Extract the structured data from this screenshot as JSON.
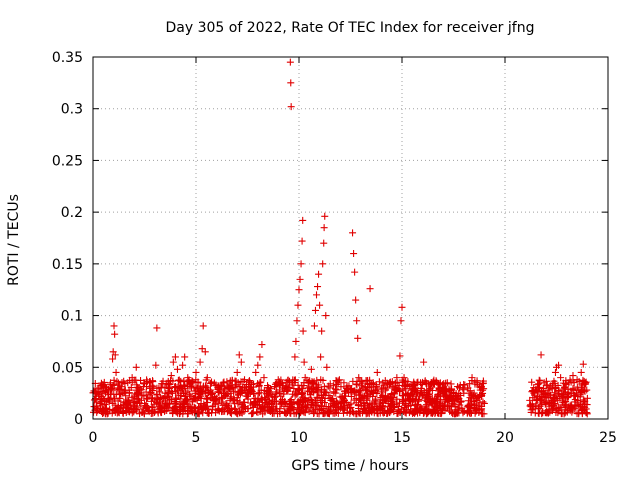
{
  "chart_data": {
    "type": "scatter",
    "title": "Day 305 of 2022, Rate Of TEC Index for receiver jfng",
    "xlabel": "GPS time / hours",
    "ylabel": "ROTI / TECUs",
    "xlim": [
      0,
      25
    ],
    "ylim": [
      0,
      0.35
    ],
    "xticks": [
      0,
      5,
      10,
      15,
      20,
      25
    ],
    "xtick_labels": [
      "0",
      "5",
      "10",
      "15",
      "20",
      "25"
    ],
    "yticks": [
      0,
      0.05,
      0.1,
      0.15,
      0.2,
      0.25,
      0.3,
      0.35
    ],
    "ytick_labels": [
      "0",
      "0.05",
      "0.1",
      "0.15",
      "0.2",
      "0.25",
      "0.3",
      "0.35"
    ],
    "grid": true,
    "marker": "+",
    "color": "#e00000",
    "series": [
      {
        "points": [
          [
            0.05,
            0.012
          ],
          [
            0.15,
            0.022
          ],
          [
            0.25,
            0.03
          ],
          [
            0.35,
            0.015
          ],
          [
            0.45,
            0.025
          ],
          [
            0.55,
            0.018
          ],
          [
            0.65,
            0.028
          ],
          [
            0.75,
            0.02
          ],
          [
            0.85,
            0.035
          ],
          [
            0.95,
            0.058
          ],
          [
            0.98,
            0.065
          ],
          [
            1.02,
            0.09
          ],
          [
            1.05,
            0.082
          ],
          [
            1.08,
            0.062
          ],
          [
            1.12,
            0.045
          ],
          [
            1.2,
            0.03
          ],
          [
            1.3,
            0.02
          ],
          [
            1.45,
            0.025
          ],
          [
            1.6,
            0.015
          ],
          [
            1.75,
            0.028
          ],
          [
            1.9,
            0.04
          ],
          [
            2.0,
            0.022
          ],
          [
            2.1,
            0.05
          ],
          [
            2.2,
            0.03
          ],
          [
            2.35,
            0.018
          ],
          [
            2.5,
            0.034
          ],
          [
            2.65,
            0.02
          ],
          [
            2.8,
            0.025
          ],
          [
            2.95,
            0.03
          ],
          [
            3.05,
            0.052
          ],
          [
            3.1,
            0.088
          ],
          [
            3.2,
            0.03
          ],
          [
            3.35,
            0.02
          ],
          [
            3.5,
            0.025
          ],
          [
            3.65,
            0.033
          ],
          [
            3.8,
            0.042
          ],
          [
            3.9,
            0.055
          ],
          [
            4.0,
            0.06
          ],
          [
            4.1,
            0.048
          ],
          [
            4.2,
            0.03
          ],
          [
            4.35,
            0.052
          ],
          [
            4.45,
            0.06
          ],
          [
            4.6,
            0.04
          ],
          [
            4.75,
            0.022
          ],
          [
            4.9,
            0.03
          ],
          [
            5.0,
            0.045
          ],
          [
            5.1,
            0.035
          ],
          [
            5.2,
            0.055
          ],
          [
            5.3,
            0.068
          ],
          [
            5.35,
            0.09
          ],
          [
            5.45,
            0.065
          ],
          [
            5.55,
            0.04
          ],
          [
            5.7,
            0.028
          ],
          [
            5.9,
            0.022
          ],
          [
            6.1,
            0.032
          ],
          [
            6.3,
            0.02
          ],
          [
            6.5,
            0.036
          ],
          [
            6.7,
            0.025
          ],
          [
            6.9,
            0.03
          ],
          [
            7.0,
            0.045
          ],
          [
            7.1,
            0.062
          ],
          [
            7.2,
            0.055
          ],
          [
            7.35,
            0.03
          ],
          [
            7.5,
            0.022
          ],
          [
            7.7,
            0.028
          ],
          [
            7.9,
            0.045
          ],
          [
            8.0,
            0.052
          ],
          [
            8.1,
            0.06
          ],
          [
            8.2,
            0.072
          ],
          [
            8.3,
            0.04
          ],
          [
            8.5,
            0.03
          ],
          [
            8.7,
            0.022
          ],
          [
            8.9,
            0.035
          ],
          [
            9.05,
            0.025
          ],
          [
            9.2,
            0.03
          ],
          [
            9.4,
            0.028
          ],
          [
            9.55,
            0.03
          ],
          [
            9.62,
            0.302
          ],
          [
            9.6,
            0.325
          ],
          [
            9.58,
            0.345
          ],
          [
            9.7,
            0.035
          ],
          [
            9.8,
            0.06
          ],
          [
            9.85,
            0.075
          ],
          [
            9.9,
            0.095
          ],
          [
            9.95,
            0.11
          ],
          [
            10.0,
            0.125
          ],
          [
            10.05,
            0.135
          ],
          [
            10.1,
            0.15
          ],
          [
            10.15,
            0.172
          ],
          [
            10.18,
            0.192
          ],
          [
            10.2,
            0.085
          ],
          [
            10.25,
            0.055
          ],
          [
            10.3,
            0.04
          ],
          [
            10.45,
            0.03
          ],
          [
            10.6,
            0.048
          ],
          [
            10.75,
            0.09
          ],
          [
            10.8,
            0.105
          ],
          [
            10.85,
            0.12
          ],
          [
            10.9,
            0.128
          ],
          [
            10.95,
            0.14
          ],
          [
            11.0,
            0.11
          ],
          [
            11.05,
            0.06
          ],
          [
            11.1,
            0.085
          ],
          [
            11.15,
            0.15
          ],
          [
            11.2,
            0.17
          ],
          [
            11.22,
            0.185
          ],
          [
            11.25,
            0.196
          ],
          [
            11.3,
            0.1
          ],
          [
            11.35,
            0.05
          ],
          [
            11.5,
            0.03
          ],
          [
            11.7,
            0.025
          ],
          [
            11.9,
            0.035
          ],
          [
            12.1,
            0.022
          ],
          [
            12.3,
            0.03
          ],
          [
            12.5,
            0.028
          ],
          [
            12.6,
            0.18
          ],
          [
            12.65,
            0.16
          ],
          [
            12.7,
            0.142
          ],
          [
            12.75,
            0.115
          ],
          [
            12.8,
            0.095
          ],
          [
            12.85,
            0.078
          ],
          [
            12.9,
            0.04
          ],
          [
            13.1,
            0.03
          ],
          [
            13.3,
            0.025
          ],
          [
            13.45,
            0.126
          ],
          [
            13.6,
            0.035
          ],
          [
            13.8,
            0.045
          ],
          [
            14.0,
            0.03
          ],
          [
            14.2,
            0.022
          ],
          [
            14.4,
            0.035
          ],
          [
            14.6,
            0.03
          ],
          [
            14.75,
            0.04
          ],
          [
            14.9,
            0.061
          ],
          [
            14.95,
            0.095
          ],
          [
            15.0,
            0.108
          ],
          [
            15.1,
            0.04
          ],
          [
            15.3,
            0.025
          ],
          [
            15.5,
            0.03
          ],
          [
            15.7,
            0.022
          ],
          [
            15.9,
            0.035
          ],
          [
            16.05,
            0.055
          ],
          [
            16.2,
            0.028
          ],
          [
            16.4,
            0.032
          ],
          [
            16.6,
            0.02
          ],
          [
            16.8,
            0.03
          ],
          [
            17.0,
            0.025
          ],
          [
            17.2,
            0.035
          ],
          [
            17.4,
            0.028
          ],
          [
            17.6,
            0.022
          ],
          [
            17.8,
            0.03
          ],
          [
            18.0,
            0.025
          ],
          [
            18.2,
            0.03
          ],
          [
            18.4,
            0.04
          ],
          [
            18.6,
            0.02
          ],
          [
            18.8,
            0.028
          ],
          [
            19.0,
            0.015
          ],
          [
            21.2,
            0.018
          ],
          [
            21.4,
            0.025
          ],
          [
            21.6,
            0.03
          ],
          [
            21.75,
            0.062
          ],
          [
            21.9,
            0.035
          ],
          [
            22.1,
            0.028
          ],
          [
            22.3,
            0.032
          ],
          [
            22.45,
            0.045
          ],
          [
            22.5,
            0.05
          ],
          [
            22.6,
            0.052
          ],
          [
            22.7,
            0.04
          ],
          [
            22.9,
            0.03
          ],
          [
            23.1,
            0.035
          ],
          [
            23.3,
            0.042
          ],
          [
            23.5,
            0.038
          ],
          [
            23.7,
            0.045
          ],
          [
            23.8,
            0.053
          ],
          [
            23.9,
            0.035
          ],
          [
            24.0,
            0.02
          ]
        ]
      }
    ],
    "dense_band": {
      "segments": [
        [
          0.0,
          19.0
        ],
        [
          21.2,
          24.0
        ]
      ],
      "y_range": [
        0.005,
        0.038
      ]
    }
  }
}
